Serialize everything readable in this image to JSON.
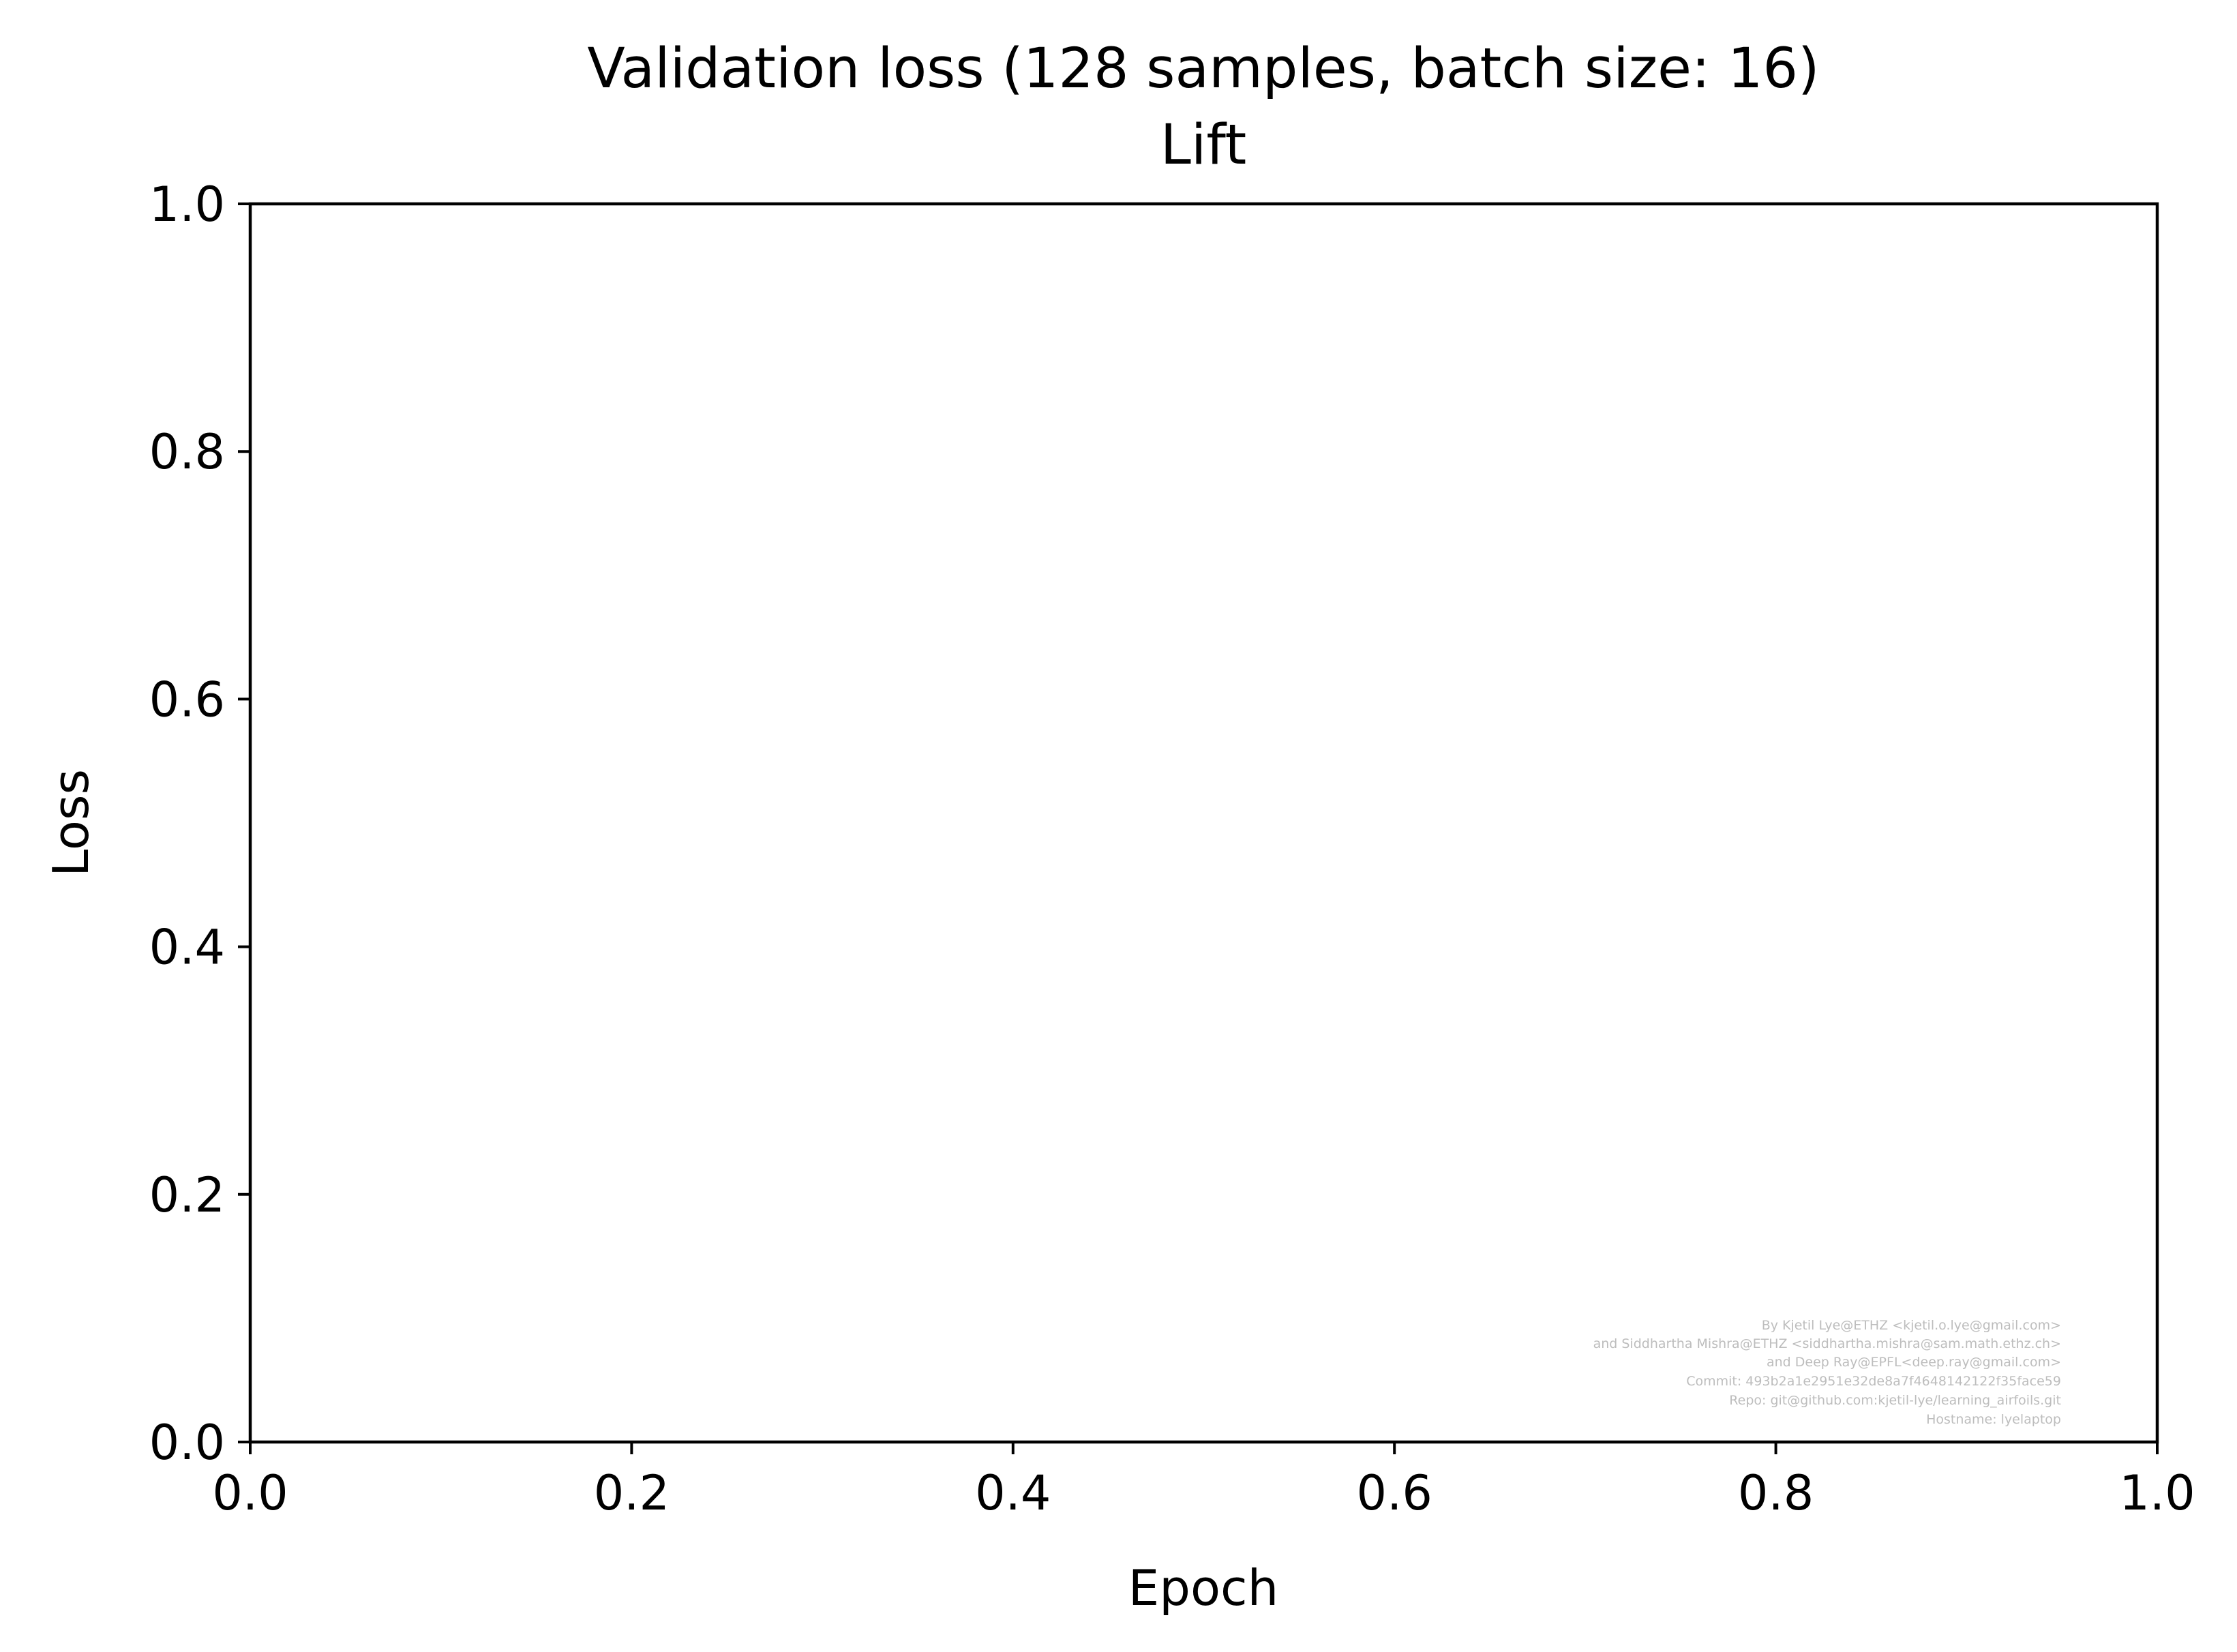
{
  "chart_data": {
    "type": "line",
    "title": "Validation loss (128 samples, batch size: 16)",
    "subtitle": "Lift",
    "xlabel": "Epoch",
    "ylabel": "Loss",
    "xlim": [
      0.0,
      1.0
    ],
    "ylim": [
      0.0,
      1.0
    ],
    "xticks": [
      0.0,
      0.2,
      0.4,
      0.6,
      0.8,
      1.0
    ],
    "yticks": [
      0.0,
      0.2,
      0.4,
      0.6,
      0.8,
      1.0
    ],
    "xtick_labels": [
      "0.0",
      "0.2",
      "0.4",
      "0.6",
      "0.8",
      "1.0"
    ],
    "ytick_labels": [
      "0.0",
      "0.2",
      "0.4",
      "0.6",
      "0.8",
      "1.0"
    ],
    "series": [],
    "grid": false,
    "legend": "none",
    "colors": {
      "axes": "#000000",
      "background": "#ffffff",
      "credit_text": "#bdbdbd"
    },
    "annotation_lines": [
      "By Kjetil Lye@ETHZ <kjetil.o.lye@gmail.com>",
      "and Siddhartha Mishra@ETHZ <siddhartha.mishra@sam.math.ethz.ch>",
      "and Deep Ray@EPFL<deep.ray@gmail.com>",
      "Commit: 493b2a1e2951e32de8a7f4648142122f35face59",
      "Repo: git@github.com:kjetil-lye/learning_airfoils.git",
      "Hostname: lyelaptop"
    ]
  }
}
